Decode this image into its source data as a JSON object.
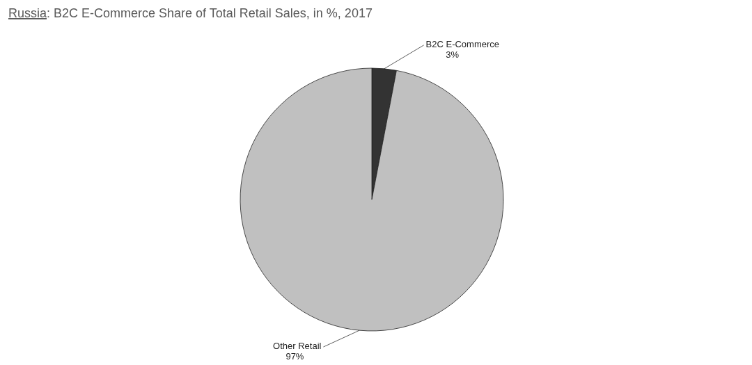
{
  "chart_data": {
    "type": "pie",
    "title": "Russia: B2C E-Commerce Share of Total Retail Sales, in %, 2017",
    "categories": [
      "B2C E-Commerce",
      "Other Retail"
    ],
    "values": [
      3,
      97
    ],
    "colors": [
      "#333333",
      "#c0c0c0"
    ],
    "value_labels": [
      "3%",
      "97%"
    ]
  }
}
